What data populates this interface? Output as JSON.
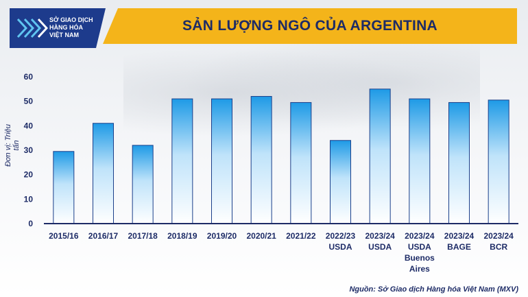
{
  "logo": {
    "line1": "SỞ GIAO DỊCH",
    "line2": "HÀNG HÓA",
    "line3": "VIỆT NAM",
    "icon": "mxv-logo-icon"
  },
  "colors": {
    "header": "#f4b41a",
    "title": "#1d2b66",
    "bar_top": "#1e9ae6",
    "bar_bottom": "#ffffff",
    "bar_stroke": "#1b3f8a",
    "axis": "#1d2b66"
  },
  "source_text": "Nguồn: Sở Giao dịch Hàng hóa Việt Nam (MXV)",
  "chart_data": {
    "type": "bar",
    "title": "SẢN LƯỢNG NGÔ CỦA ARGENTINA",
    "ylabel": "Đơn vị: Triệu tấn",
    "xlabel": "",
    "ylim": [
      0,
      60
    ],
    "yticks": [
      0,
      10,
      20,
      30,
      40,
      50,
      60
    ],
    "grid": false,
    "categories": [
      [
        "2015/16"
      ],
      [
        "2016/17"
      ],
      [
        "2017/18"
      ],
      [
        "2018/19"
      ],
      [
        "2019/20"
      ],
      [
        "2020/21"
      ],
      [
        "2021/22"
      ],
      [
        "2022/23",
        "USDA"
      ],
      [
        "2023/24",
        "USDA"
      ],
      [
        "2023/24",
        "USDA",
        "Buenos",
        "Aires"
      ],
      [
        "2023/24",
        "BAGE"
      ],
      [
        "2023/24",
        "BCR"
      ]
    ],
    "values": [
      29.5,
      41,
      32,
      51,
      51,
      52,
      49.5,
      34,
      55,
      51,
      49.5,
      50.5
    ]
  }
}
